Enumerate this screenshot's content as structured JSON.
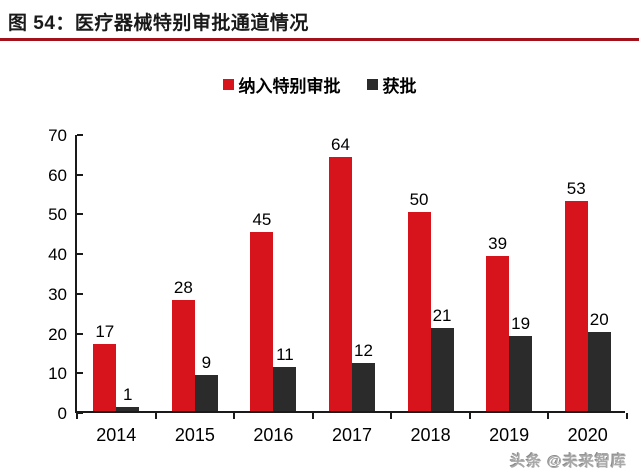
{
  "header": {
    "title": "图 54：医疗器械特别审批通道情况"
  },
  "watermark": "头条 @未来智库",
  "colors": {
    "bar_red": "#d7141c",
    "bar_dark": "#2b2b2b",
    "underline_red": "#a3121a",
    "axis_black": "#1a1a1a",
    "watermark_gray": "#a9a9a9"
  },
  "chart_data": {
    "type": "bar",
    "title": "图 54：医疗器械特别审批通道情况",
    "categories": [
      "2014",
      "2015",
      "2016",
      "2017",
      "2018",
      "2019",
      "2020"
    ],
    "series": [
      {
        "name": "纳入特别审批",
        "color": "#d7141c",
        "values": [
          17,
          28,
          45,
          64,
          50,
          39,
          53
        ]
      },
      {
        "name": "获批",
        "color": "#2b2b2b",
        "values": [
          1,
          9,
          11,
          12,
          21,
          19,
          20
        ]
      }
    ],
    "xlabel": "",
    "ylabel": "",
    "ylim": [
      0,
      70
    ],
    "yticks": [
      0,
      10,
      20,
      30,
      40,
      50,
      60,
      70
    ],
    "grid": false,
    "legend_position": "top-center",
    "value_labels": true
  }
}
